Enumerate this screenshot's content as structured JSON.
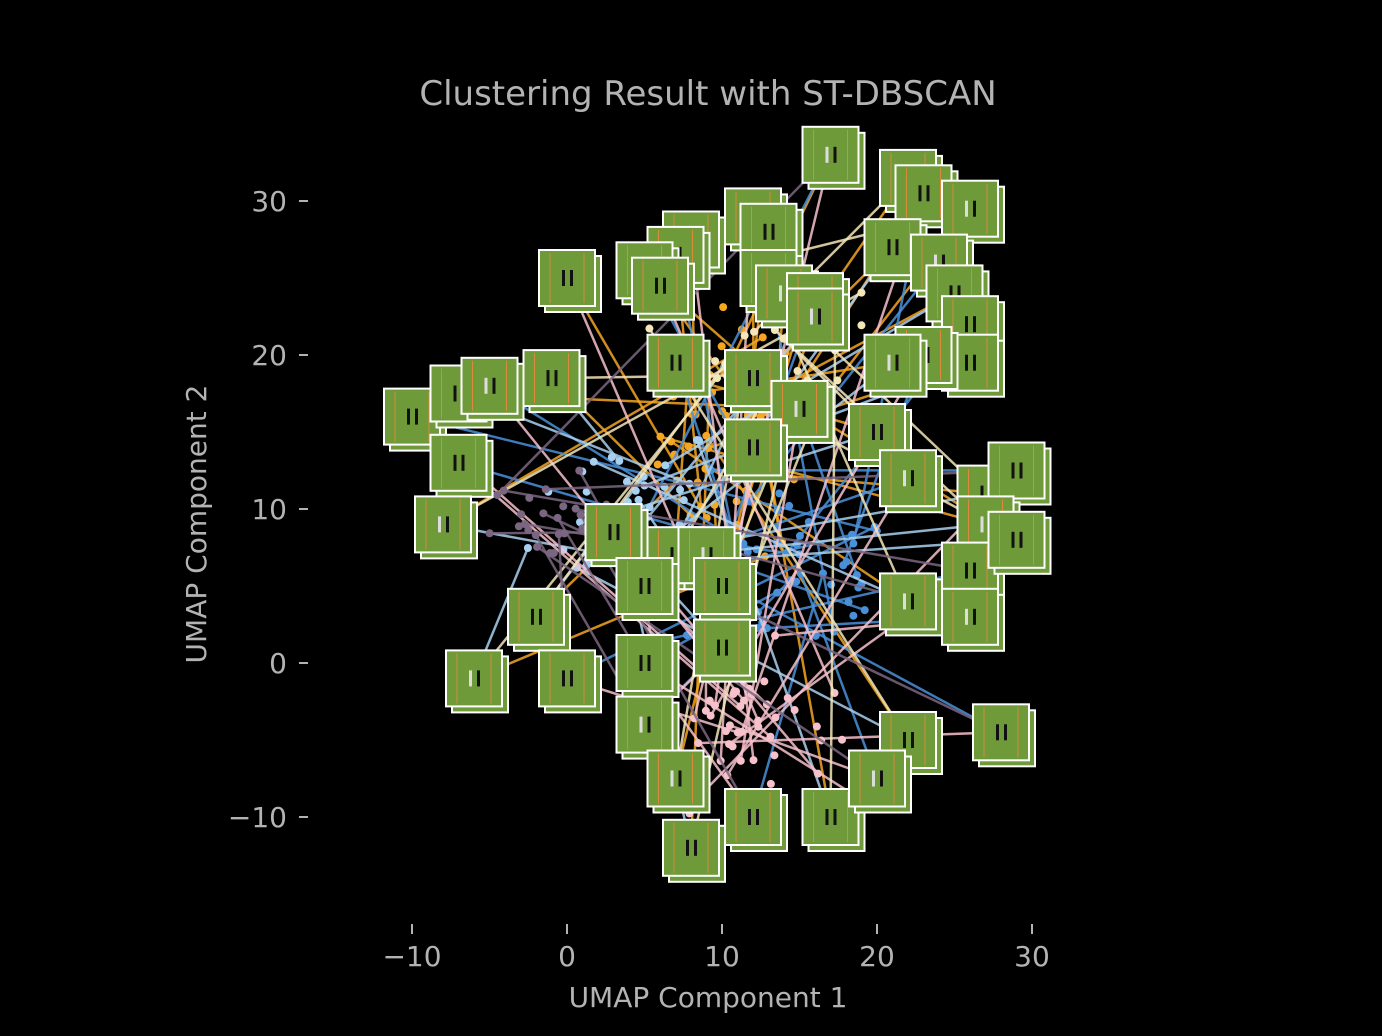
{
  "chart_data": {
    "type": "scatter",
    "title": "Clustering Result with ST-DBSCAN",
    "xlabel": "UMAP Component 1",
    "ylabel": "UMAP Component 2",
    "xlim": [
      -12,
      32
    ],
    "ylim": [
      -15,
      35
    ],
    "xticks": [
      -10,
      0,
      10,
      20,
      30
    ],
    "yticks": [
      -10,
      0,
      10,
      20,
      30
    ],
    "xtick_labels": [
      "−10",
      "0",
      "10",
      "20",
      "30"
    ],
    "ytick_labels": [
      "−10",
      "0",
      "10",
      "20",
      "30"
    ],
    "grid": false,
    "background": "#000000",
    "text_color": "#b3b3b3",
    "thumbnail_color": "#6e9a3a",
    "cluster_colors": [
      "#f5a623",
      "#4a90d9",
      "#a8d0f0",
      "#f7c1cb",
      "#f5e6b8",
      "#7a6680",
      "#ffffff"
    ],
    "clusters": [
      {
        "color": "#f5a623",
        "center": [
          11,
          15
        ],
        "spread": [
          2.5,
          4
        ],
        "points": 70
      },
      {
        "color": "#4a90d9",
        "center": [
          14,
          6
        ],
        "spread": [
          4,
          3
        ],
        "points": 55
      },
      {
        "color": "#a8d0f0",
        "center": [
          4,
          10
        ],
        "spread": [
          3,
          3
        ],
        "points": 45
      },
      {
        "color": "#f7c1cb",
        "center": [
          11,
          -4
        ],
        "spread": [
          3,
          2.5
        ],
        "points": 50
      },
      {
        "color": "#f5e6b8",
        "center": [
          14,
          21
        ],
        "spread": [
          3,
          3
        ],
        "points": 35
      },
      {
        "color": "#7a6680",
        "center": [
          -1,
          9
        ],
        "spread": [
          2,
          1.5
        ],
        "points": 25
      }
    ],
    "image_thumbnails": [
      [
        17,
        33
      ],
      [
        22,
        31.5
      ],
      [
        23,
        30.5
      ],
      [
        26,
        29.5
      ],
      [
        12,
        29
      ],
      [
        13,
        28
      ],
      [
        8,
        27.5
      ],
      [
        7,
        26.5
      ],
      [
        0,
        25
      ],
      [
        5,
        25.5
      ],
      [
        6,
        24.5
      ],
      [
        13,
        25
      ],
      [
        14,
        24
      ],
      [
        16,
        23.5
      ],
      [
        21,
        27
      ],
      [
        24,
        26
      ],
      [
        25,
        24
      ],
      [
        26,
        22
      ],
      [
        16,
        22.5
      ],
      [
        7,
        19.5
      ],
      [
        12,
        18.5
      ],
      [
        15,
        16.5
      ],
      [
        26,
        19.5
      ],
      [
        23,
        20
      ],
      [
        21,
        19.5
      ],
      [
        -10,
        16
      ],
      [
        -7,
        17.5
      ],
      [
        -5,
        18
      ],
      [
        -1,
        18.5
      ],
      [
        -7,
        13
      ],
      [
        -8,
        9
      ],
      [
        12,
        14
      ],
      [
        20,
        15
      ],
      [
        22,
        12
      ],
      [
        27,
        11
      ],
      [
        29,
        12.5
      ],
      [
        27,
        9
      ],
      [
        3,
        8.5
      ],
      [
        7,
        7
      ],
      [
        9,
        7
      ],
      [
        10,
        5
      ],
      [
        5,
        5
      ],
      [
        22,
        4
      ],
      [
        26,
        6
      ],
      [
        29,
        8
      ],
      [
        26,
        3
      ],
      [
        -2,
        3
      ],
      [
        5,
        0
      ],
      [
        -6,
        -1
      ],
      [
        0,
        -1
      ],
      [
        10,
        1
      ],
      [
        5,
        -4
      ],
      [
        22,
        -5
      ],
      [
        28,
        -4.5
      ],
      [
        7,
        -7.5
      ],
      [
        12,
        -10
      ],
      [
        17,
        -10
      ],
      [
        20,
        -7.5
      ],
      [
        8,
        -12
      ]
    ]
  }
}
